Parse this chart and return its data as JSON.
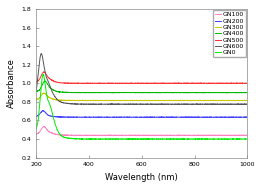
{
  "title": "",
  "xlabel": "Wavelength (nm)",
  "ylabel": "Absorbance",
  "xlim": [
    200,
    1000
  ],
  "ylim": [
    0.2,
    1.8
  ],
  "yticks": [
    0.2,
    0.4,
    0.6,
    0.8,
    1.0,
    1.2,
    1.4,
    1.6,
    1.8
  ],
  "xticks": [
    200,
    400,
    600,
    800,
    1000
  ],
  "series": [
    {
      "label": "GN100",
      "color": "#ff80c0",
      "baseline": 0.44,
      "peak_x": 228,
      "peak_y": 0.52,
      "wiggle1_x": 250,
      "wiggle1_y": 0.47,
      "wiggle2_x": 265,
      "wiggle2_y": 0.455,
      "drop_end": 350,
      "drop_rate": 80
    },
    {
      "label": "GN200",
      "color": "#4040ff",
      "baseline": 0.635,
      "peak_x": 226,
      "peak_y": 0.695,
      "wiggle1_x": 250,
      "wiggle1_y": 0.645,
      "wiggle2_x": 268,
      "wiggle2_y": 0.638,
      "drop_end": 350,
      "drop_rate": 80
    },
    {
      "label": "GN300",
      "color": "#c8c800",
      "baseline": 0.815,
      "peak_x": 228,
      "peak_y": 0.88,
      "wiggle1_x": 247,
      "wiggle1_y": 0.845,
      "wiggle2_x": 265,
      "wiggle2_y": 0.825,
      "drop_end": 400,
      "drop_rate": 100
    },
    {
      "label": "GN400",
      "color": "#00bb00",
      "baseline": 0.9,
      "peak_x": 232,
      "peak_y": 1.0,
      "wiggle1_x": 250,
      "wiggle1_y": 0.945,
      "wiggle2_x": 268,
      "wiggle2_y": 0.92,
      "drop_end": 450,
      "drop_rate": 120
    },
    {
      "label": "GN500",
      "color": "#ff3030",
      "baseline": 1.0,
      "peak_x": 228,
      "peak_y": 1.1,
      "wiggle1_x": 248,
      "wiggle1_y": 1.05,
      "wiggle2_x": 268,
      "wiggle2_y": 1.02,
      "drop_end": 350,
      "drop_rate": 60
    },
    {
      "label": "GN600",
      "color": "#555555",
      "baseline": 0.775,
      "peak_x": 218,
      "peak_y": 1.22,
      "wiggle1_x": 240,
      "wiggle1_y": 1.05,
      "wiggle2_x": 260,
      "wiggle2_y": 0.96,
      "drop_end": 500,
      "drop_rate": 150
    },
    {
      "label": "GN0",
      "color": "#00ee00",
      "baseline": 0.4,
      "peak_x": 225,
      "peak_y": 0.97,
      "wiggle1_x": 248,
      "wiggle1_y": 0.8,
      "wiggle2_x": 265,
      "wiggle2_y": 0.72,
      "drop_end": 500,
      "drop_rate": 180
    }
  ],
  "legend_fontsize": 4.5,
  "axis_fontsize": 6,
  "tick_fontsize": 4.5,
  "figsize": [
    2.62,
    1.89
  ],
  "dpi": 100
}
